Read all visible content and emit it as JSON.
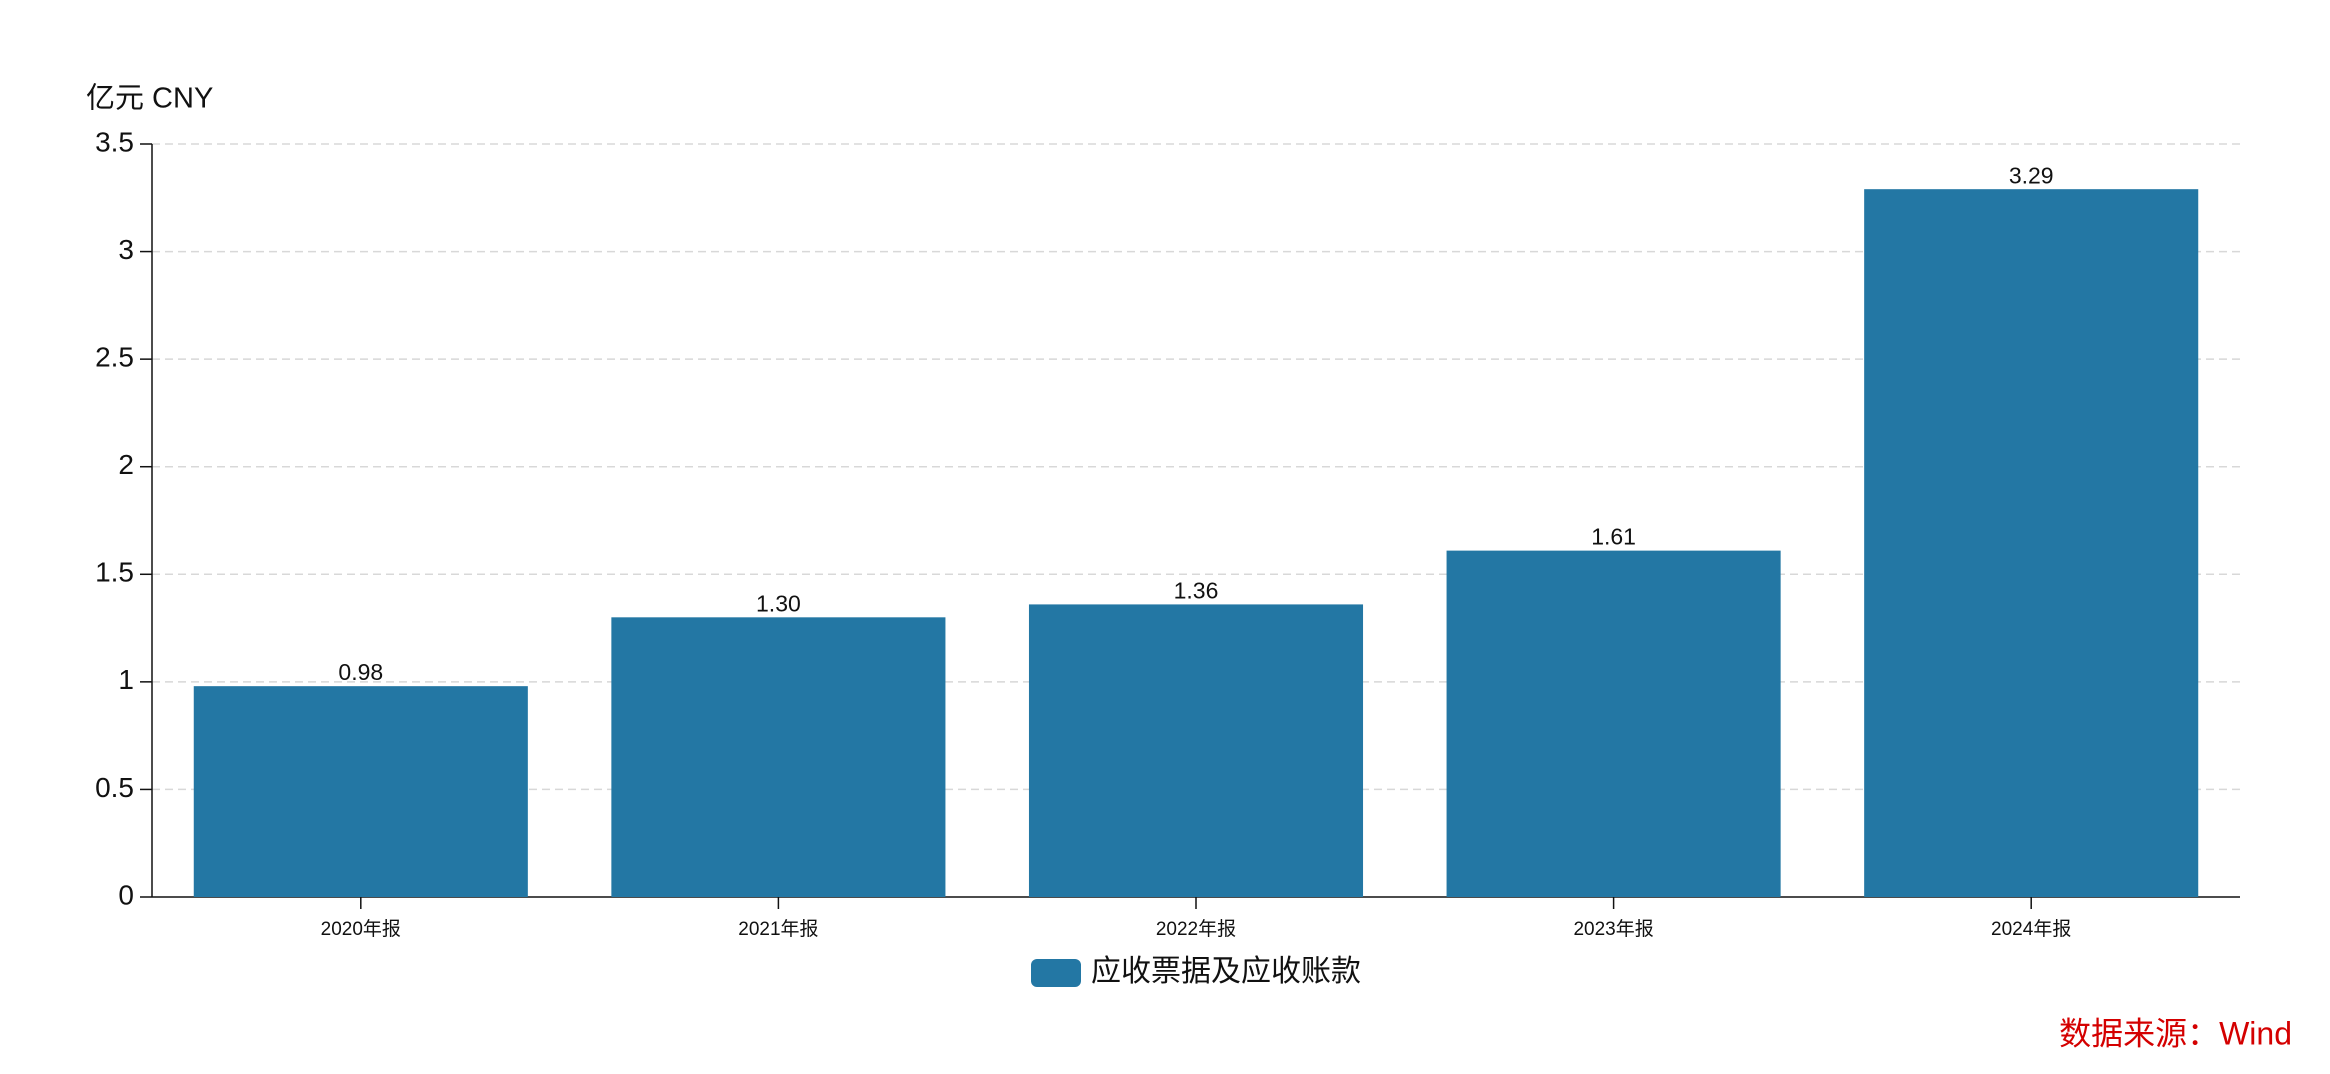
{
  "chart_data": {
    "type": "bar",
    "y_label": "亿元  CNY",
    "categories": [
      "2020年报",
      "2021年报",
      "2022年报",
      "2023年报",
      "2024年报"
    ],
    "series": [
      {
        "name": "应收票据及应收账款",
        "color": "#2377a4",
        "values": [
          0.98,
          1.3,
          1.36,
          1.61,
          3.29
        ],
        "value_labels": [
          "0.98",
          "1.30",
          "1.36",
          "1.61",
          "3.29"
        ]
      }
    ],
    "ylim": [
      0,
      3.5
    ],
    "yticks": [
      0,
      0.5,
      1,
      1.5,
      2,
      2.5,
      3,
      3.5
    ],
    "grid": true,
    "legend": "bottom",
    "source": "数据来源：Wind"
  }
}
